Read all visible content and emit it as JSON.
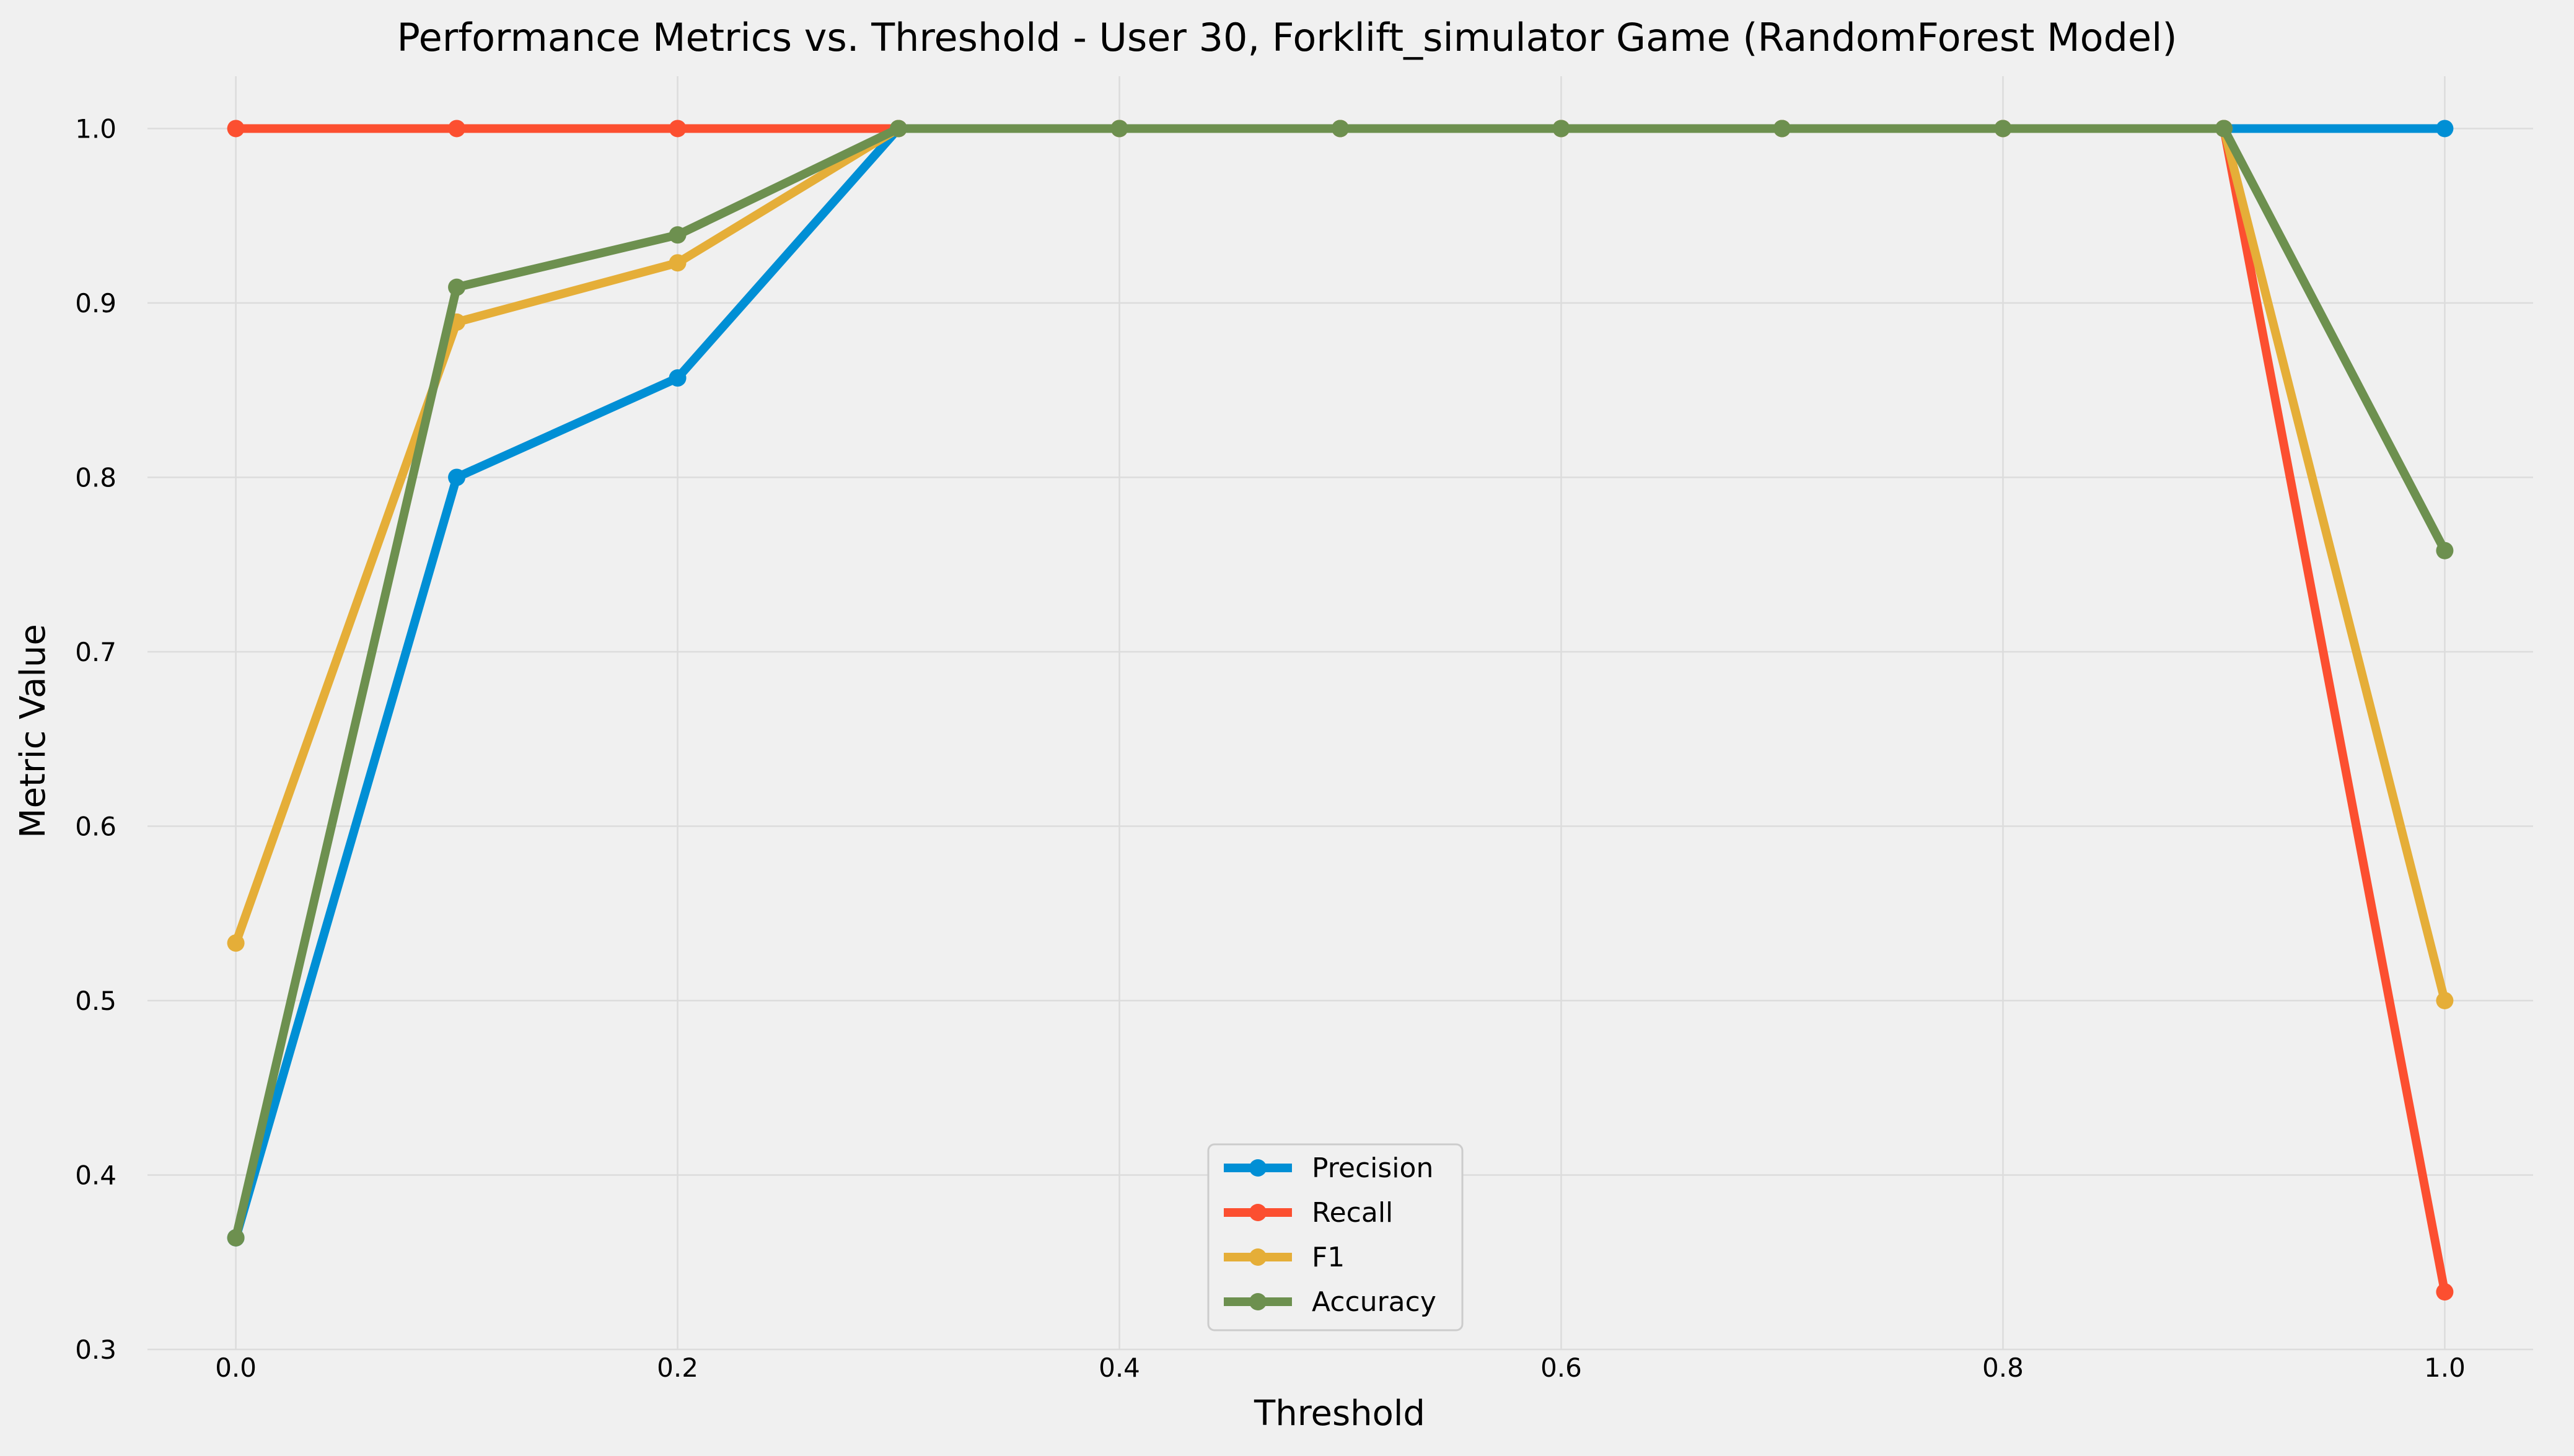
{
  "chart_data": {
    "type": "line",
    "title": "Performance Metrics vs. Threshold - User 30, Forklift_simulator Game (RandomForest Model)",
    "xlabel": "Threshold",
    "ylabel": "Metric Value",
    "x": [
      0.0,
      0.1,
      0.2,
      0.3,
      0.4,
      0.5,
      0.6,
      0.7,
      0.8,
      0.9,
      1.0
    ],
    "xlim": [
      -0.04,
      1.04
    ],
    "ylim": [
      0.3,
      1.03
    ],
    "xticks": [
      0.0,
      0.2,
      0.4,
      0.6,
      0.8,
      1.0
    ],
    "xtick_labels": [
      "0.0",
      "0.2",
      "0.4",
      "0.6",
      "0.8",
      "1.0"
    ],
    "yticks": [
      0.3,
      0.4,
      0.5,
      0.6,
      0.7,
      0.8,
      0.9,
      1.0
    ],
    "ytick_labels": [
      "0.3",
      "0.4",
      "0.5",
      "0.6",
      "0.7",
      "0.8",
      "0.9",
      "1.0"
    ],
    "grid": true,
    "legend_position": "bottom-center",
    "series": [
      {
        "name": "Precision",
        "color": "#008fd5",
        "values": [
          0.364,
          0.8,
          0.857,
          1.0,
          1.0,
          1.0,
          1.0,
          1.0,
          1.0,
          1.0,
          1.0
        ]
      },
      {
        "name": "Recall",
        "color": "#fc4f30",
        "values": [
          1.0,
          1.0,
          1.0,
          1.0,
          1.0,
          1.0,
          1.0,
          1.0,
          1.0,
          1.0,
          0.333
        ]
      },
      {
        "name": "F1",
        "color": "#e5ae38",
        "values": [
          0.533,
          0.889,
          0.923,
          1.0,
          1.0,
          1.0,
          1.0,
          1.0,
          1.0,
          1.0,
          0.5
        ]
      },
      {
        "name": "Accuracy",
        "color": "#6d904f",
        "values": [
          0.364,
          0.909,
          0.939,
          1.0,
          1.0,
          1.0,
          1.0,
          1.0,
          1.0,
          1.0,
          0.758
        ]
      }
    ]
  }
}
